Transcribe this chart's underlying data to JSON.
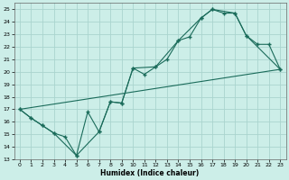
{
  "xlabel": "Humidex (Indice chaleur)",
  "background_color": "#cceee8",
  "grid_color": "#aad4ce",
  "line_color": "#1a6b5a",
  "xlim": [
    -0.5,
    23.5
  ],
  "ylim": [
    13,
    25.5
  ],
  "xticks": [
    0,
    1,
    2,
    3,
    4,
    5,
    6,
    7,
    8,
    9,
    10,
    11,
    12,
    13,
    14,
    15,
    16,
    17,
    18,
    19,
    20,
    21,
    22,
    23
  ],
  "yticks": [
    13,
    14,
    15,
    16,
    17,
    18,
    19,
    20,
    21,
    22,
    23,
    24,
    25
  ],
  "line1_x": [
    0,
    1,
    2,
    3,
    4,
    5,
    6,
    7,
    8,
    9,
    10,
    11,
    12,
    13,
    14,
    15,
    16,
    17,
    18,
    19,
    20,
    21,
    22,
    23
  ],
  "line1_y": [
    17.0,
    16.3,
    15.7,
    15.1,
    14.8,
    13.3,
    16.8,
    15.2,
    17.6,
    17.5,
    20.3,
    19.8,
    20.4,
    21.0,
    22.5,
    22.8,
    24.3,
    25.0,
    24.7,
    24.7,
    22.9,
    22.2,
    22.2,
    20.2
  ],
  "line2_x": [
    0,
    1,
    2,
    3,
    5,
    7,
    8,
    9,
    10,
    12,
    14,
    16,
    17,
    19,
    20,
    23
  ],
  "line2_y": [
    17.0,
    16.3,
    15.7,
    15.1,
    13.3,
    15.2,
    17.6,
    17.5,
    20.3,
    20.4,
    22.5,
    24.3,
    25.0,
    24.7,
    22.9,
    20.2
  ],
  "line3_x": [
    0,
    23
  ],
  "line3_y": [
    17.0,
    20.2
  ]
}
